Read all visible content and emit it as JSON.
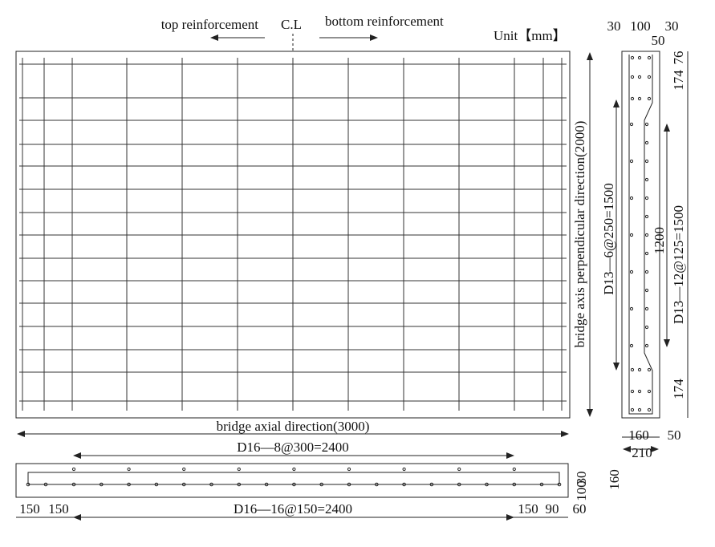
{
  "header": {
    "left_label": "top reinforcement",
    "center_label": "C.L",
    "right_label": "bottom reinforcement",
    "unit": "Unit【mm】"
  },
  "plan": {
    "vertical_label": "bridge axis perpendicular direction(2000)",
    "horizontal_label": "bridge axial direction(3000)"
  },
  "longitudinal_section": {
    "top_bar_label": "D16—8@300=2400",
    "bottom_bar_label": "D16—16@150=2400",
    "bottom_dims": [
      "150",
      "150",
      "150",
      "90",
      "60"
    ],
    "side_dims": [
      "30",
      "100",
      "160"
    ]
  },
  "cross_section": {
    "top_dims": [
      "30",
      "100",
      "30"
    ],
    "top_inner_dim": "50",
    "right_dims": [
      "76",
      "174",
      "174"
    ],
    "left_bar_label": "D13—6@250=1500",
    "inner_dim": "1200",
    "right_bar_label": "D13—12@125=1500",
    "bottom_dims": [
      "160",
      "50"
    ],
    "total_width": "210"
  }
}
